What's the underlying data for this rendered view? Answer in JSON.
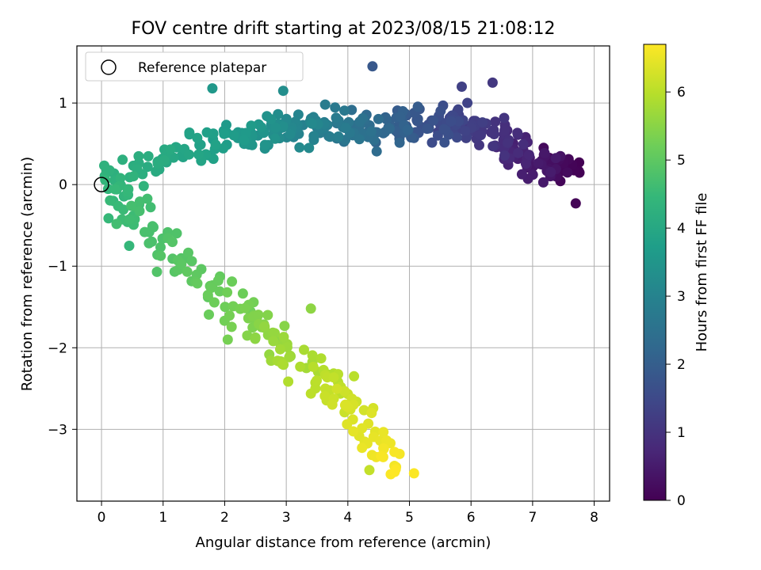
{
  "chart_data": {
    "type": "scatter",
    "title": "FOV centre drift starting at 2023/08/15 21:08:12",
    "xlabel": "Angular distance from reference (arcmin)",
    "ylabel": "Rotation from reference (arcmin)",
    "xlim": [
      -0.4,
      8.25
    ],
    "ylim": [
      -3.88,
      1.7
    ],
    "xticks": [
      0,
      1,
      2,
      3,
      4,
      5,
      6,
      7,
      8
    ],
    "yticks": [
      -3,
      -2,
      -1,
      0,
      1
    ],
    "ytick_labels": [
      "−3",
      "−2",
      "−1",
      "0",
      "1"
    ],
    "grid": true,
    "legend": {
      "position": "top-left",
      "entries": [
        "Reference platepar"
      ]
    },
    "reference_point": {
      "x": 0,
      "y": 0
    },
    "colorbar": {
      "label": "Hours from first FF file",
      "range": [
        0,
        6.7
      ],
      "ticks": [
        0,
        1,
        2,
        3,
        4,
        5,
        6
      ],
      "colormap": "viridis"
    },
    "track": [
      {
        "t": 0.0,
        "x": 7.6,
        "y": 0.2
      },
      {
        "t": 0.5,
        "x": 7.0,
        "y": 0.25
      },
      {
        "t": 0.9,
        "x": 6.5,
        "y": 0.55
      },
      {
        "t": 1.2,
        "x": 6.0,
        "y": 0.75
      },
      {
        "t": 1.6,
        "x": 5.5,
        "y": 0.75
      },
      {
        "t": 2.0,
        "x": 4.9,
        "y": 0.7
      },
      {
        "t": 2.4,
        "x": 4.3,
        "y": 0.65
      },
      {
        "t": 2.8,
        "x": 3.7,
        "y": 0.75
      },
      {
        "t": 3.2,
        "x": 3.0,
        "y": 0.65
      },
      {
        "t": 3.6,
        "x": 2.2,
        "y": 0.6
      },
      {
        "t": 3.9,
        "x": 1.4,
        "y": 0.4
      },
      {
        "t": 4.1,
        "x": 0.8,
        "y": 0.25
      },
      {
        "t": 4.3,
        "x": 0.3,
        "y": 0.1
      },
      {
        "t": 4.5,
        "x": 0.3,
        "y": -0.25
      },
      {
        "t": 4.7,
        "x": 0.7,
        "y": -0.4
      },
      {
        "t": 4.9,
        "x": 1.2,
        "y": -0.9
      },
      {
        "t": 5.1,
        "x": 1.8,
        "y": -1.3
      },
      {
        "t": 5.4,
        "x": 2.5,
        "y": -1.7
      },
      {
        "t": 5.7,
        "x": 3.0,
        "y": -2.0
      },
      {
        "t": 6.0,
        "x": 3.6,
        "y": -2.4
      },
      {
        "t": 6.3,
        "x": 4.1,
        "y": -2.75
      },
      {
        "t": 6.5,
        "x": 4.5,
        "y": -3.15
      },
      {
        "t": 6.7,
        "x": 4.9,
        "y": -3.5
      }
    ],
    "point_count": 560,
    "scatter_spread": {
      "x": 0.28,
      "y": 0.17
    },
    "outliers": [
      {
        "t": 1.85,
        "x": 4.4,
        "y": 1.45
      },
      {
        "t": 1.3,
        "x": 5.85,
        "y": 1.2
      },
      {
        "t": 1.1,
        "x": 6.35,
        "y": 1.25
      },
      {
        "t": 3.55,
        "x": 1.8,
        "y": 1.18
      },
      {
        "t": 3.3,
        "x": 2.95,
        "y": 1.15
      },
      {
        "t": 4.45,
        "x": 0.45,
        "y": -0.75
      },
      {
        "t": 4.85,
        "x": 0.9,
        "y": -1.07
      },
      {
        "t": 5.55,
        "x": 3.4,
        "y": -1.52
      },
      {
        "t": 5.3,
        "x": 2.05,
        "y": -1.9
      },
      {
        "t": 6.1,
        "x": 4.35,
        "y": -3.5
      },
      {
        "t": 6.0,
        "x": 4.1,
        "y": -2.35
      },
      {
        "t": 0.05,
        "x": 7.7,
        "y": -0.23
      }
    ]
  }
}
